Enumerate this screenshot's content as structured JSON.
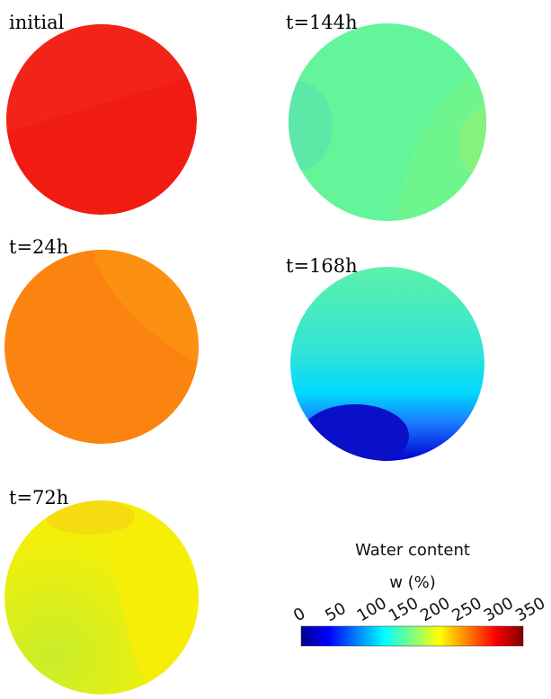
{
  "panels": [
    {
      "label": "initial"
    },
    {
      "label": "t=144h"
    },
    {
      "label": "t=24h"
    },
    {
      "label": "t=168h"
    },
    {
      "label": "t=72h"
    }
  ],
  "colorbar": {
    "title": "Water content",
    "unit": "w (%)",
    "range": [
      0,
      350
    ],
    "ticks": [
      0,
      50,
      100,
      150,
      200,
      250,
      300,
      350
    ]
  }
}
